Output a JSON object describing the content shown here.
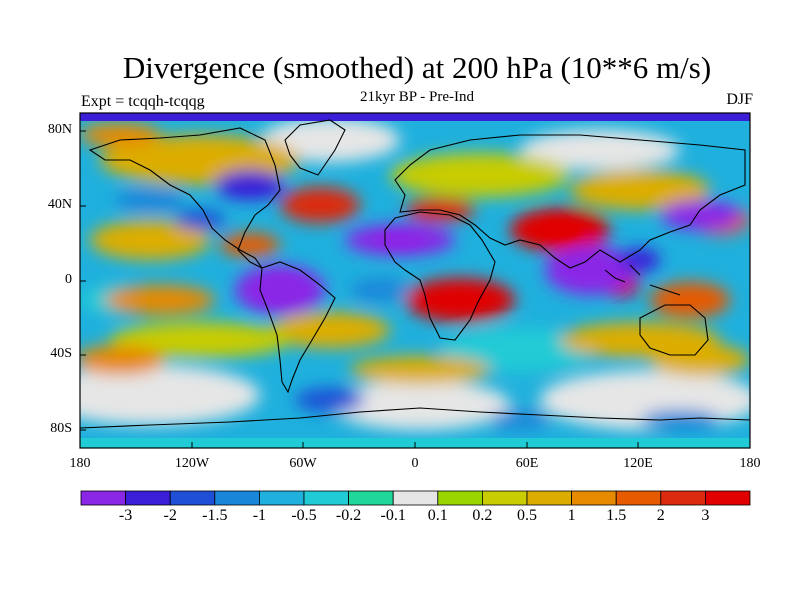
{
  "title": "Divergence (smoothed) at 200 hPa (10**6 m/s)",
  "subtitle": "21kyr BP - Pre-Ind",
  "expt_label": "Expt = tcqqh-tcqqg",
  "season": "DJF",
  "map": {
    "lat_ticks": [
      "80N",
      "40N",
      "0",
      "40S",
      "80S"
    ],
    "lon_ticks": [
      "180",
      "120W",
      "60W",
      "0",
      "60E",
      "120E",
      "180"
    ]
  },
  "colorbar": {
    "labels": [
      "-3",
      "-2",
      "-1.5",
      "-1",
      "-0.5",
      "-0.2",
      "-0.1",
      "0.1",
      "0.2",
      "0.5",
      "1",
      "1.5",
      "2",
      "3"
    ],
    "colors": [
      "#8a26e6",
      "#3b1fd8",
      "#1f4fd6",
      "#1a86d9",
      "#1fb0dd",
      "#20cbd6",
      "#20d69a",
      "#e6e6e6",
      "#99d600",
      "#c8cc00",
      "#dcad00",
      "#e68a00",
      "#e65a00",
      "#dc2a0e",
      "#e00000"
    ]
  }
}
